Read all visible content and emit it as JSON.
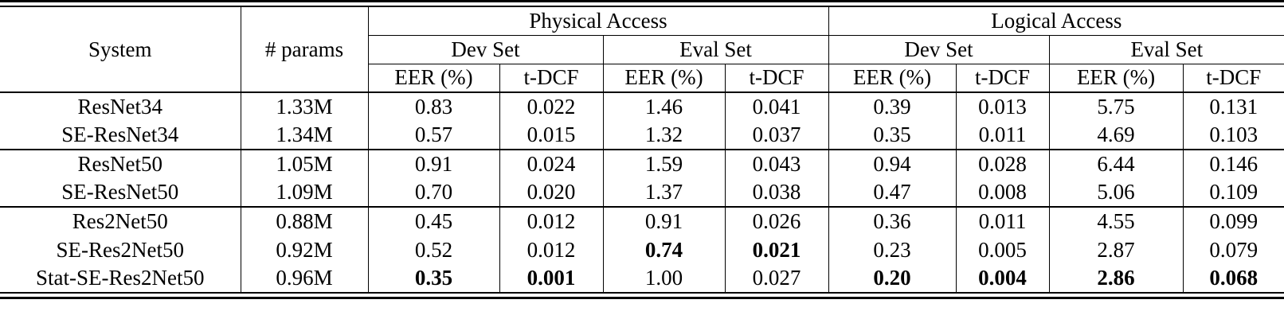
{
  "page": {
    "background": "#ffffff",
    "text_color": "#000000",
    "rule_color": "#000000"
  },
  "table": {
    "corner": {
      "system": "System",
      "params": "# params"
    },
    "access_groups": [
      {
        "label": "Physical Access"
      },
      {
        "label": "Logical Access"
      }
    ],
    "set_labels": [
      "Dev Set",
      "Eval Set",
      "Dev Set",
      "Eval Set"
    ],
    "metric_labels": [
      "EER (%)",
      "t-DCF",
      "EER (%)",
      "t-DCF",
      "EER (%)",
      "t-DCF",
      "EER (%)",
      "t-DCF"
    ],
    "row_groups": [
      {
        "rows": [
          {
            "system": "ResNet34",
            "params": "1.33M",
            "values": [
              "0.83",
              "0.022",
              "1.46",
              "0.041",
              "0.39",
              "0.013",
              "5.75",
              "0.131"
            ],
            "bold": []
          },
          {
            "system": "SE-ResNet34",
            "params": "1.34M",
            "values": [
              "0.57",
              "0.015",
              "1.32",
              "0.037",
              "0.35",
              "0.011",
              "4.69",
              "0.103"
            ],
            "bold": []
          }
        ]
      },
      {
        "rows": [
          {
            "system": "ResNet50",
            "params": "1.05M",
            "values": [
              "0.91",
              "0.024",
              "1.59",
              "0.043",
              "0.94",
              "0.028",
              "6.44",
              "0.146"
            ],
            "bold": []
          },
          {
            "system": "SE-ResNet50",
            "params": "1.09M",
            "values": [
              "0.70",
              "0.020",
              "1.37",
              "0.038",
              "0.47",
              "0.008",
              "5.06",
              "0.109"
            ],
            "bold": []
          }
        ]
      },
      {
        "rows": [
          {
            "system": "Res2Net50",
            "params": "0.88M",
            "values": [
              "0.45",
              "0.012",
              "0.91",
              "0.026",
              "0.36",
              "0.011",
              "4.55",
              "0.099"
            ],
            "bold": []
          },
          {
            "system": "SE-Res2Net50",
            "params": "0.92M",
            "values": [
              "0.52",
              "0.012",
              "0.74",
              "0.021",
              "0.23",
              "0.005",
              "2.87",
              "0.079"
            ],
            "bold": [
              2,
              3
            ]
          },
          {
            "system": "Stat-SE-Res2Net50",
            "params": "0.96M",
            "values": [
              "0.35",
              "0.001",
              "1.00",
              "0.027",
              "0.20",
              "0.004",
              "2.86",
              "0.068"
            ],
            "bold": [
              0,
              1,
              4,
              5,
              6,
              7
            ]
          }
        ]
      }
    ]
  },
  "chart_data": {
    "type": "table",
    "columns": [
      "System",
      "# params",
      "PA Dev EER (%)",
      "PA Dev t-DCF",
      "PA Eval EER (%)",
      "PA Eval t-DCF",
      "LA Dev EER (%)",
      "LA Dev t-DCF",
      "LA Eval EER (%)",
      "LA Eval t-DCF"
    ],
    "rows": [
      [
        "ResNet34",
        "1.33M",
        0.83,
        0.022,
        1.46,
        0.041,
        0.39,
        0.013,
        5.75,
        0.131
      ],
      [
        "SE-ResNet34",
        "1.34M",
        0.57,
        0.015,
        1.32,
        0.037,
        0.35,
        0.011,
        4.69,
        0.103
      ],
      [
        "ResNet50",
        "1.05M",
        0.91,
        0.024,
        1.59,
        0.043,
        0.94,
        0.028,
        6.44,
        0.146
      ],
      [
        "SE-ResNet50",
        "1.09M",
        0.7,
        0.02,
        1.37,
        0.038,
        0.47,
        0.008,
        5.06,
        0.109
      ],
      [
        "Res2Net50",
        "0.88M",
        0.45,
        0.012,
        0.91,
        0.026,
        0.36,
        0.011,
        4.55,
        0.099
      ],
      [
        "SE-Res2Net50",
        "0.92M",
        0.52,
        0.012,
        0.74,
        0.021,
        0.23,
        0.005,
        2.87,
        0.079
      ],
      [
        "Stat-SE-Res2Net50",
        "0.96M",
        0.35,
        0.001,
        1.0,
        0.027,
        0.2,
        0.004,
        2.86,
        0.068
      ]
    ],
    "bold_cells_note": "Best (bold) values: PA Eval 0.74/0.021 (SE-Res2Net50); PA Dev 0.35/0.001, LA Dev 0.20/0.004, LA Eval 2.86/0.068 (Stat-SE-Res2Net50)"
  }
}
